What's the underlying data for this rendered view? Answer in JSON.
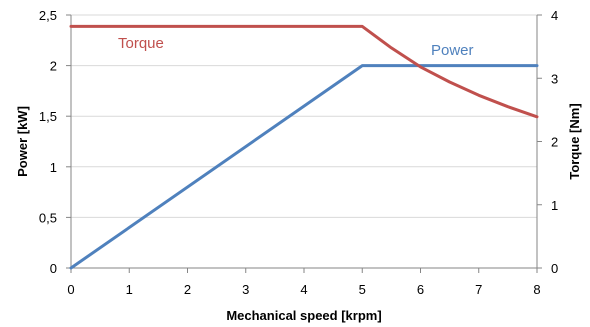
{
  "chart_data": {
    "type": "line",
    "xlabel": "Mechanical speed [krpm]",
    "y_left_label": "Power [kW]",
    "y_right_label": "Torque [Nm]",
    "xlim": [
      0,
      8
    ],
    "y_left_lim": [
      0,
      2.5
    ],
    "y_right_lim": [
      0,
      4
    ],
    "x_ticks": [
      0,
      1,
      2,
      3,
      4,
      5,
      6,
      7,
      8
    ],
    "x_tick_labels": [
      "0",
      "1",
      "2",
      "3",
      "4",
      "5",
      "6",
      "7",
      "8"
    ],
    "y_left_ticks": [
      0,
      0.5,
      1,
      1.5,
      2,
      2.5
    ],
    "y_left_tick_labels": [
      "0",
      "0,5",
      "1",
      "1,5",
      "2",
      "2,5"
    ],
    "y_right_ticks": [
      0,
      1,
      2,
      3,
      4
    ],
    "y_right_tick_labels": [
      "0",
      "1",
      "2",
      "3",
      "4"
    ],
    "grid": "horizontal",
    "legend": "inline labels",
    "series": [
      {
        "name": "Power",
        "axis": "left",
        "color": "#4F81BD",
        "x": [
          0,
          5,
          8
        ],
        "y": [
          0,
          2,
          2
        ]
      },
      {
        "name": "Torque",
        "axis": "right",
        "color": "#C0504D",
        "x": [
          0,
          5,
          5.5,
          6,
          6.5,
          7,
          7.5,
          8
        ],
        "y": [
          3.82,
          3.82,
          3.48,
          3.18,
          2.94,
          2.73,
          2.55,
          2.39
        ]
      }
    ]
  }
}
